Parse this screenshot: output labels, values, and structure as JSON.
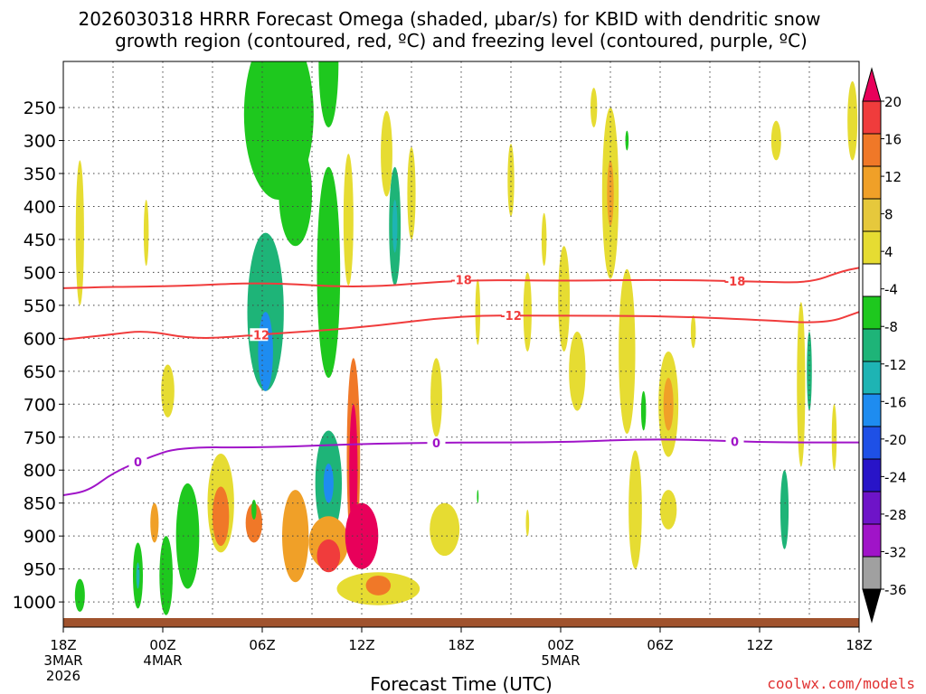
{
  "chart_data": {
    "type": "heatmap",
    "title_line1": "2026030318 HRRR Forecast Omega (shaded, µbar/s) for KBID with dendritic snow",
    "title_line2": "growth region (contoured, red, ºC) and freezing level (contoured, purple, ºC)",
    "xlabel": "Forecast Time (UTC)",
    "credit": "coolwx.com/models",
    "x_range_hours": [
      0,
      48
    ],
    "y_range_hPa": [
      1030,
      180
    ],
    "pressure_levels": [
      250,
      300,
      350,
      400,
      450,
      500,
      550,
      600,
      650,
      700,
      750,
      800,
      850,
      900,
      950,
      1000
    ],
    "pressure_labels": [
      "250",
      "300",
      "350",
      "400",
      "450",
      "500",
      "550",
      "600",
      "650",
      "700",
      "750",
      "800",
      "850",
      "900",
      "950",
      "1000"
    ],
    "x_ticks": [
      {
        "h": 0,
        "l1": "18Z",
        "l2": "3MAR",
        "l3": "2026"
      },
      {
        "h": 6,
        "l1": "00Z",
        "l2": "4MAR",
        "l3": ""
      },
      {
        "h": 12,
        "l1": "06Z",
        "l2": "",
        "l3": ""
      },
      {
        "h": 18,
        "l1": "12Z",
        "l2": "",
        "l3": ""
      },
      {
        "h": 24,
        "l1": "18Z",
        "l2": "",
        "l3": ""
      },
      {
        "h": 30,
        "l1": "00Z",
        "l2": "5MAR",
        "l3": ""
      },
      {
        "h": 36,
        "l1": "06Z",
        "l2": "",
        "l3": ""
      },
      {
        "h": 42,
        "l1": "12Z",
        "l2": "",
        "l3": ""
      },
      {
        "h": 48,
        "l1": "18Z",
        "l2": "",
        "l3": ""
      }
    ],
    "colorbar": {
      "labels": [
        "20",
        "16",
        "12",
        "8",
        "4",
        "-4",
        "-8",
        "-12",
        "-16",
        "-20",
        "-24",
        "-28",
        "-32",
        "-36"
      ],
      "colors": [
        "#e8005a",
        "#f03c3c",
        "#f07828",
        "#f0a028",
        "#e6c83c",
        "#e6dc32",
        "#ffffff",
        "#1ec81e",
        "#1eb478",
        "#1eb4b4",
        "#1e8cf0",
        "#1e50e6",
        "#2814c8",
        "#6e14c8",
        "#a014c8",
        "#a0a0a0",
        "#000000"
      ]
    },
    "contours": {
      "temp_m18": {
        "label": "-18",
        "color": "#f03c3c",
        "points": [
          [
            0,
            524
          ],
          [
            3,
            522
          ],
          [
            7,
            521
          ],
          [
            12,
            515
          ],
          [
            18,
            524
          ],
          [
            24,
            511
          ],
          [
            30,
            513
          ],
          [
            36,
            511
          ],
          [
            42,
            514
          ],
          [
            45,
            516
          ],
          [
            47,
            498
          ],
          [
            48,
            493
          ]
        ],
        "label_hours": [
          24,
          40.5
        ]
      },
      "temp_m12": {
        "label": "-12",
        "color": "#f03c3c",
        "points": [
          [
            0,
            602
          ],
          [
            3,
            594
          ],
          [
            5,
            588
          ],
          [
            8,
            602
          ],
          [
            12,
            594
          ],
          [
            18,
            584
          ],
          [
            24,
            565
          ],
          [
            30,
            566
          ],
          [
            36,
            566
          ],
          [
            42,
            572
          ],
          [
            46,
            578
          ],
          [
            48,
            560
          ]
        ],
        "label_hours": [
          11.8,
          27
        ]
      },
      "freezing_0": {
        "label": "0",
        "color": "#a014c8",
        "points": [
          [
            0,
            838
          ],
          [
            1.5,
            832
          ],
          [
            3,
            804
          ],
          [
            5,
            782
          ],
          [
            7,
            765
          ],
          [
            12,
            766
          ],
          [
            18,
            760
          ],
          [
            24,
            758
          ],
          [
            30,
            758
          ],
          [
            36,
            752
          ],
          [
            42,
            758
          ],
          [
            48,
            758
          ]
        ],
        "label_hours": [
          4.5,
          22.5,
          40.5
        ]
      }
    },
    "omega_cells": [
      {
        "h": 13.0,
        "p": 260,
        "w": 4.2,
        "dp": 260,
        "v": -6
      },
      {
        "h": 12.2,
        "p": 560,
        "w": 2.2,
        "dp": 240,
        "v": -8
      },
      {
        "h": 12.2,
        "p": 620,
        "w": 0.9,
        "dp": 120,
        "v": -16
      },
      {
        "h": 14.0,
        "p": 380,
        "w": 2.0,
        "dp": 160,
        "v": -5
      },
      {
        "h": 16.0,
        "p": 820,
        "w": 1.6,
        "dp": 160,
        "v": -10
      },
      {
        "h": 16.0,
        "p": 820,
        "w": 0.6,
        "dp": 60,
        "v": -16
      },
      {
        "h": 16.0,
        "p": 180,
        "w": 1.2,
        "dp": 200,
        "v": -5
      },
      {
        "h": 16.0,
        "p": 500,
        "w": 1.4,
        "dp": 320,
        "v": -5
      },
      {
        "h": 16.0,
        "p": 910,
        "w": 2.4,
        "dp": 80,
        "v": 10
      },
      {
        "h": 16.0,
        "p": 930,
        "w": 1.4,
        "dp": 50,
        "v": 16
      },
      {
        "h": 17.5,
        "p": 780,
        "w": 0.8,
        "dp": 300,
        "v": 12
      },
      {
        "h": 17.5,
        "p": 800,
        "w": 0.5,
        "dp": 200,
        "v": 20
      },
      {
        "h": 18.0,
        "p": 900,
        "w": 2.0,
        "dp": 100,
        "v": 20
      },
      {
        "h": 17.2,
        "p": 420,
        "w": 0.6,
        "dp": 200,
        "v": 6
      },
      {
        "h": 20.0,
        "p": 430,
        "w": 0.7,
        "dp": 180,
        "v": -8
      },
      {
        "h": 20.0,
        "p": 430,
        "w": 0.3,
        "dp": 80,
        "v": -12
      },
      {
        "h": 9.5,
        "p": 850,
        "w": 1.6,
        "dp": 150,
        "v": 6
      },
      {
        "h": 9.5,
        "p": 870,
        "w": 1.0,
        "dp": 90,
        "v": 14
      },
      {
        "h": 11.5,
        "p": 880,
        "w": 1.0,
        "dp": 60,
        "v": 12
      },
      {
        "h": 11.5,
        "p": 860,
        "w": 0.3,
        "dp": 30,
        "v": -4
      },
      {
        "h": 14.0,
        "p": 900,
        "w": 1.6,
        "dp": 140,
        "v": 8
      },
      {
        "h": 19.0,
        "p": 980,
        "w": 5.0,
        "dp": 50,
        "v": 5
      },
      {
        "h": 19.0,
        "p": 975,
        "w": 1.5,
        "dp": 30,
        "v": 12
      },
      {
        "h": 7.5,
        "p": 900,
        "w": 1.4,
        "dp": 160,
        "v": -6
      },
      {
        "h": 6.2,
        "p": 960,
        "w": 0.8,
        "dp": 120,
        "v": -5
      },
      {
        "h": 4.5,
        "p": 960,
        "w": 0.6,
        "dp": 100,
        "v": -6
      },
      {
        "h": 4.5,
        "p": 960,
        "w": 0.2,
        "dp": 40,
        "v": -14
      },
      {
        "h": 1.0,
        "p": 990,
        "w": 0.6,
        "dp": 50,
        "v": -7
      },
      {
        "h": 1.0,
        "p": 440,
        "w": 0.5,
        "dp": 220,
        "v": 5
      },
      {
        "h": 5.0,
        "p": 440,
        "w": 0.3,
        "dp": 100,
        "v": 5
      },
      {
        "h": 6.3,
        "p": 680,
        "w": 0.8,
        "dp": 80,
        "v": 5
      },
      {
        "h": 5.5,
        "p": 880,
        "w": 0.5,
        "dp": 60,
        "v": 10
      },
      {
        "h": 19.5,
        "p": 320,
        "w": 0.7,
        "dp": 130,
        "v": 5
      },
      {
        "h": 21.0,
        "p": 380,
        "w": 0.5,
        "dp": 140,
        "v": 5
      },
      {
        "h": 22.5,
        "p": 690,
        "w": 0.7,
        "dp": 120,
        "v": 5
      },
      {
        "h": 23.0,
        "p": 890,
        "w": 1.8,
        "dp": 80,
        "v": 5
      },
      {
        "h": 25.0,
        "p": 560,
        "w": 0.3,
        "dp": 100,
        "v": 5
      },
      {
        "h": 27.0,
        "p": 360,
        "w": 0.4,
        "dp": 110,
        "v": 5
      },
      {
        "h": 28.0,
        "p": 560,
        "w": 0.5,
        "dp": 120,
        "v": 5
      },
      {
        "h": 29.0,
        "p": 450,
        "w": 0.3,
        "dp": 80,
        "v": 5
      },
      {
        "h": 30.2,
        "p": 540,
        "w": 0.7,
        "dp": 160,
        "v": 5
      },
      {
        "h": 31.0,
        "p": 650,
        "w": 1.0,
        "dp": 120,
        "v": 5
      },
      {
        "h": 32.0,
        "p": 250,
        "w": 0.4,
        "dp": 60,
        "v": 5
      },
      {
        "h": 33.0,
        "p": 380,
        "w": 1.0,
        "dp": 260,
        "v": 5
      },
      {
        "h": 33.0,
        "p": 380,
        "w": 0.4,
        "dp": 100,
        "v": 10
      },
      {
        "h": 34.0,
        "p": 620,
        "w": 1.0,
        "dp": 250,
        "v": 5
      },
      {
        "h": 34.5,
        "p": 860,
        "w": 0.8,
        "dp": 180,
        "v": 5
      },
      {
        "h": 36.5,
        "p": 700,
        "w": 1.2,
        "dp": 160,
        "v": 6
      },
      {
        "h": 36.5,
        "p": 700,
        "w": 0.6,
        "dp": 80,
        "v": 10
      },
      {
        "h": 36.5,
        "p": 860,
        "w": 1.0,
        "dp": 60,
        "v": 5
      },
      {
        "h": 35.0,
        "p": 710,
        "w": 0.3,
        "dp": 60,
        "v": -6
      },
      {
        "h": 38.0,
        "p": 590,
        "w": 0.3,
        "dp": 50,
        "v": 5
      },
      {
        "h": 34.0,
        "p": 300,
        "w": 0.2,
        "dp": 30,
        "v": -6
      },
      {
        "h": 43.0,
        "p": 300,
        "w": 0.6,
        "dp": 60,
        "v": 5
      },
      {
        "h": 43.5,
        "p": 860,
        "w": 0.5,
        "dp": 120,
        "v": -8
      },
      {
        "h": 44.5,
        "p": 670,
        "w": 0.5,
        "dp": 250,
        "v": 5
      },
      {
        "h": 45.0,
        "p": 650,
        "w": 0.3,
        "dp": 120,
        "v": -8
      },
      {
        "h": 46.5,
        "p": 750,
        "w": 0.3,
        "dp": 100,
        "v": 5
      },
      {
        "h": 47.6,
        "p": 270,
        "w": 0.6,
        "dp": 120,
        "v": 5
      },
      {
        "h": 25.0,
        "p": 840,
        "w": 0.1,
        "dp": 20,
        "v": -6
      },
      {
        "h": 28.0,
        "p": 880,
        "w": 0.2,
        "dp": 40,
        "v": 5
      }
    ]
  }
}
